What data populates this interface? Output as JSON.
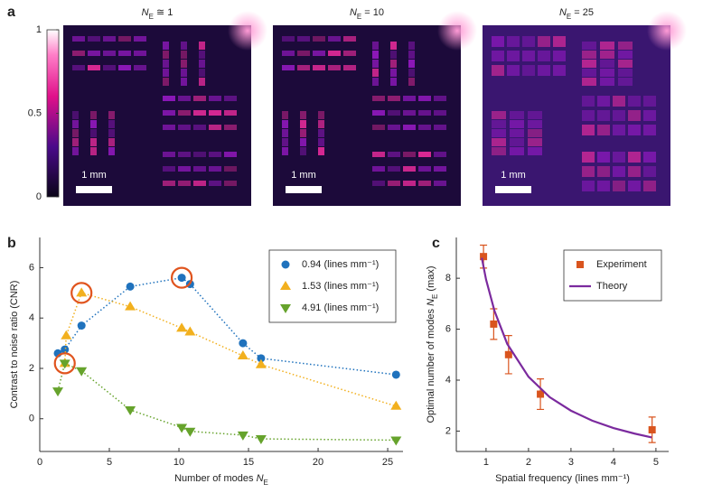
{
  "figure_labels": [
    "a",
    "b",
    "c"
  ],
  "images": {
    "titles": [
      {
        "var": "N",
        "sub": "E",
        "rest": " ≅ 1"
      },
      {
        "var": "N",
        "sub": "E",
        "rest": " = 10"
      },
      {
        "var": "N",
        "sub": "E",
        "rest": " = 25"
      }
    ],
    "scale_bar": "1 mm",
    "colorbar_lim": [
      0,
      1
    ],
    "colorbar_ticks": [
      1,
      0.5,
      0
    ]
  },
  "chart_data": [
    {
      "type": "line",
      "xlabel": {
        "text": "Number of modes ",
        "var": "N",
        "sub": "E"
      },
      "ylabel": {
        "text": "Contrast to noise ratio (CNR)"
      },
      "xlim": [
        0,
        26.1
      ],
      "ylim": [
        -1.3,
        7.2
      ],
      "xticks": [
        0,
        5,
        10,
        15,
        20,
        25
      ],
      "yticks": [
        0,
        2,
        4,
        6
      ],
      "legend": "upper right",
      "series": [
        {
          "name": "0.94 (lines mm⁻¹)",
          "color": "#1f72bd",
          "marker": "circle",
          "linestyle": "dotted",
          "x": [
            1.3,
            1.8,
            3,
            6.5,
            10.2,
            10.8,
            14.6,
            15.9,
            25.6
          ],
          "values": [
            2.6,
            2.75,
            3.7,
            5.25,
            5.6,
            5.35,
            3.0,
            2.4,
            1.75
          ]
        },
        {
          "name": "1.53 (lines mm⁻¹)",
          "color": "#f2b01e",
          "marker": "triangle-up",
          "linestyle": "dotted",
          "x": [
            1.8,
            1.9,
            3,
            6.5,
            10.2,
            10.8,
            14.6,
            15.9,
            25.6
          ],
          "values": [
            2.2,
            3.3,
            5.0,
            4.45,
            3.6,
            3.45,
            2.5,
            2.15,
            0.5
          ]
        },
        {
          "name": "4.91 (lines mm⁻¹)",
          "color": "#66a32c",
          "marker": "triangle-down",
          "linestyle": "dotted",
          "x": [
            1.3,
            1.8,
            3,
            6.5,
            10.2,
            10.8,
            14.6,
            15.9,
            25.6
          ],
          "values": [
            1.1,
            2.2,
            1.9,
            0.35,
            -0.35,
            -0.5,
            -0.65,
            -0.8,
            -0.85
          ]
        }
      ]
    },
    {
      "type": "line",
      "xlabel": {
        "text": "Spatial frequency (lines mm⁻¹)"
      },
      "ylabel": {
        "text": "Optimal number of modes ",
        "var": "N",
        "sub": "E",
        "rest": " (max)"
      },
      "xlim": [
        0.3,
        5.3
      ],
      "ylim": [
        1.2,
        9.6
      ],
      "xticks": [
        1,
        2,
        3,
        4,
        5
      ],
      "yticks": [
        2,
        4,
        6,
        8
      ],
      "legend": "upper right",
      "series": [
        {
          "name": "Experiment",
          "color": "#d9541e",
          "marker": "square",
          "linestyle": "none",
          "x": [
            0.94,
            1.18,
            1.53,
            2.28,
            4.91
          ],
          "values": [
            8.85,
            6.2,
            5.0,
            3.45,
            2.05
          ],
          "errors": [
            0.45,
            0.6,
            0.75,
            0.6,
            0.5
          ]
        },
        {
          "name": "Theory",
          "color": "#7b2a9e",
          "marker": "none",
          "linestyle": "solid",
          "x": [
            0.9,
            1,
            1.2,
            1.5,
            2,
            2.5,
            3,
            3.5,
            4,
            4.5,
            4.9
          ],
          "values": [
            8.8,
            7.95,
            6.71,
            5.42,
            4.13,
            3.33,
            2.8,
            2.41,
            2.12,
            1.9,
            1.75
          ]
        }
      ]
    }
  ]
}
